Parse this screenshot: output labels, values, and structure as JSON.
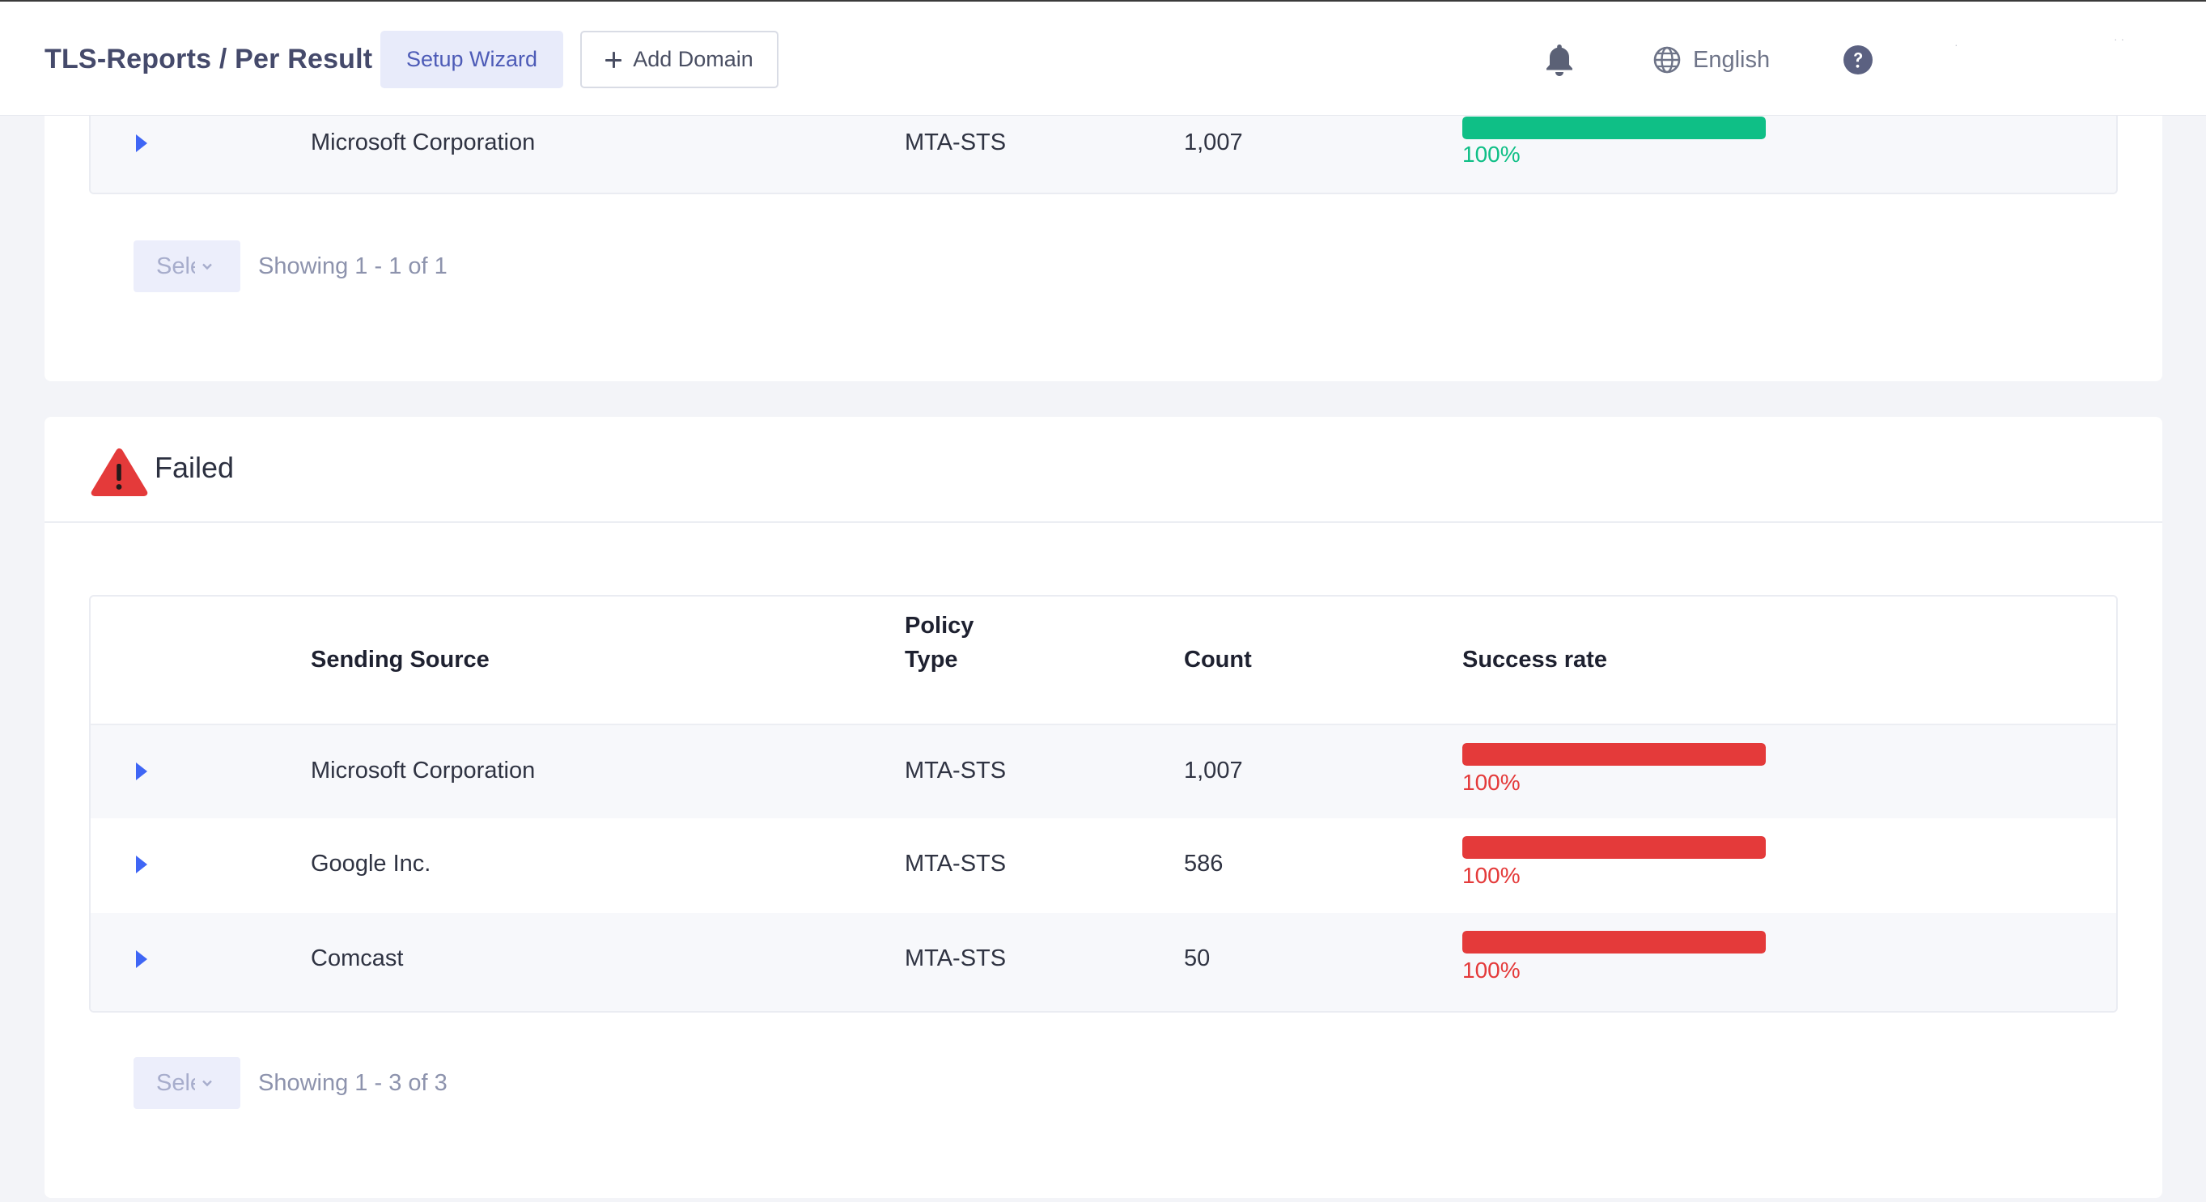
{
  "header": {
    "title": "TLS-Reports / Per Result",
    "setup_wizard_label": "Setup Wizard",
    "add_domain_label": "Add Domain",
    "notifications_icon": "bell-icon",
    "language_icon": "globe-icon",
    "language_label": "English",
    "help_icon": "question-circle-icon"
  },
  "colors": {
    "success": "#0fbf86",
    "failure": "#e43a3a",
    "accent": "#3f66f5"
  },
  "success_section": {
    "rows": [
      {
        "source": "Microsoft Corporation",
        "policy_type": "MTA-STS",
        "count": "1,007",
        "rate_label": "100%",
        "rate": 1.0
      }
    ],
    "pager": {
      "select_placeholder": "Select",
      "showing": "Showing 1 - 1 of 1"
    }
  },
  "failed_section": {
    "title": "Failed",
    "icon": "warning-triangle-icon",
    "columns": {
      "source": "Sending Source",
      "policy_type_line1": "Policy",
      "policy_type_line2": "Type",
      "count": "Count",
      "rate": "Success rate"
    },
    "rows": [
      {
        "source": "Microsoft Corporation",
        "policy_type": "MTA-STS",
        "count": "1,007",
        "rate_label": "100%",
        "rate": 1.0
      },
      {
        "source": "Google Inc.",
        "policy_type": "MTA-STS",
        "count": "586",
        "rate_label": "100%",
        "rate": 1.0
      },
      {
        "source": "Comcast",
        "policy_type": "MTA-STS",
        "count": "50",
        "rate_label": "100%",
        "rate": 1.0
      }
    ],
    "pager": {
      "select_placeholder": "Select",
      "showing": "Showing 1 - 3 of 3"
    }
  }
}
